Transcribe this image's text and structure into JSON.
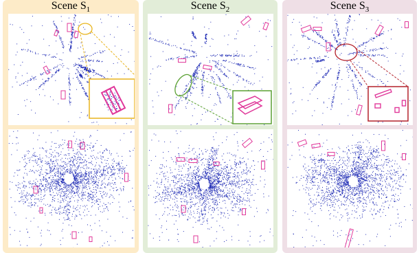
{
  "scenes": [
    {
      "title_prefix": "Scene S",
      "title_sub": "1",
      "color": "#FDEBC8",
      "accent": "#E8B41C"
    },
    {
      "title_prefix": "Scene S",
      "title_sub": "2",
      "color": "#E2EDD8",
      "accent": "#5AA032"
    },
    {
      "title_prefix": "Scene S",
      "title_sub": "3",
      "color": "#EFDFE6",
      "accent": "#B3202A"
    }
  ],
  "colors": {
    "points": "#1F2BB5",
    "boxes": "#E0389A"
  }
}
